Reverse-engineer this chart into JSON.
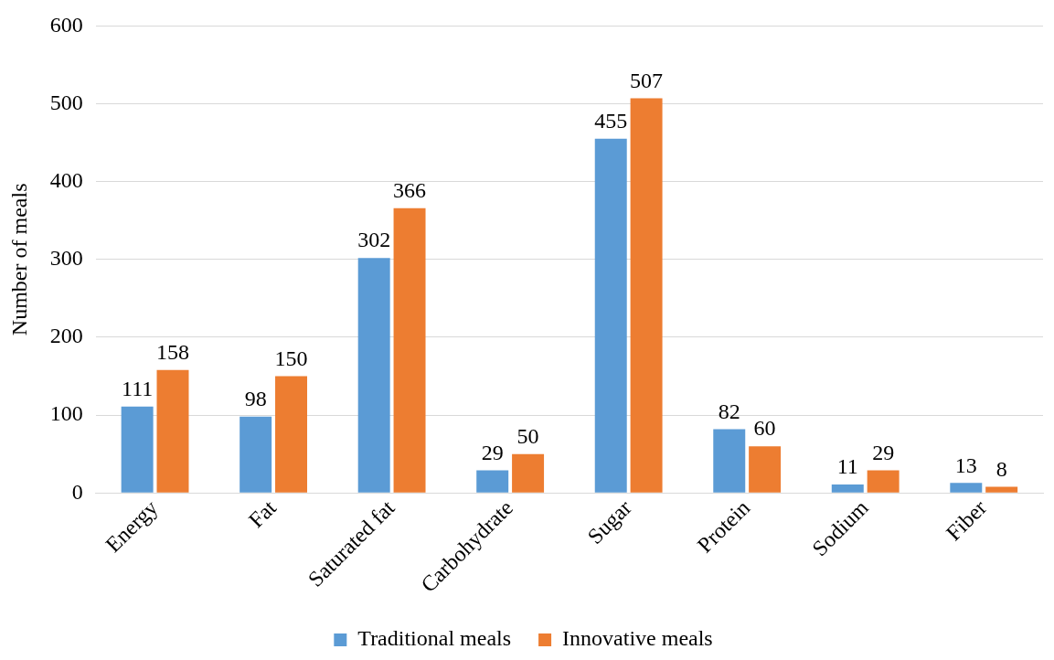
{
  "chart_data": {
    "type": "bar",
    "ylabel": "Number of meals",
    "categories": [
      "Energy",
      "Fat",
      "Saturated fat",
      "Carbohydrate",
      "Sugar",
      "Protein",
      "Sodium",
      "Fiber"
    ],
    "series": [
      {
        "name": "Traditional meals",
        "color": "#5b9bd5",
        "values": [
          111,
          98,
          302,
          29,
          455,
          82,
          11,
          13
        ]
      },
      {
        "name": "Innovative meals",
        "color": "#ed7d31",
        "values": [
          158,
          150,
          366,
          50,
          507,
          60,
          29,
          8
        ]
      }
    ],
    "ylim": [
      0,
      600
    ],
    "yticks": [
      0,
      100,
      200,
      300,
      400,
      500,
      600
    ],
    "grid": "y",
    "legend": "bottom",
    "data_labels": true
  }
}
